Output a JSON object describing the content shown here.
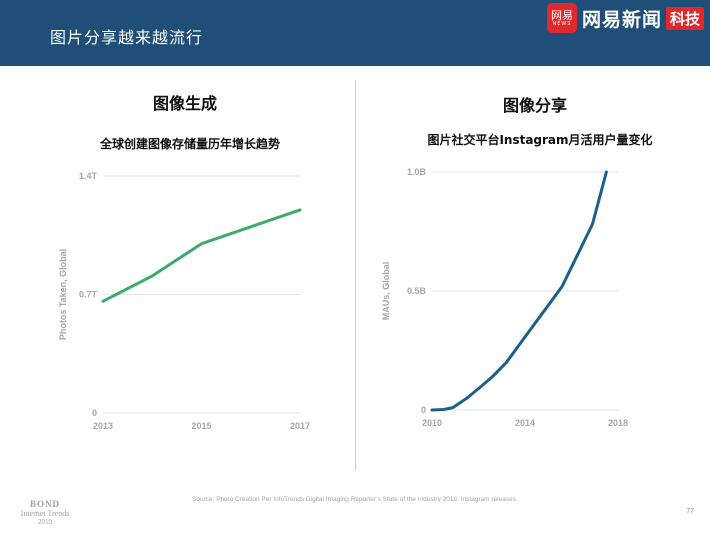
{
  "header": {
    "title": "图片分享越来越流行",
    "logo_badge": "网易",
    "logo_badge_small": "NEWS",
    "logo_text": "网易新闻",
    "logo_tag": "科技"
  },
  "panels": {
    "left_title": "图像生成",
    "right_title": "图像分享"
  },
  "chart_data": [
    {
      "type": "line",
      "title": "全球创建图像存储量历年增长趋势",
      "ylabel": "Photos Taken, Global",
      "x": [
        2013,
        2014,
        2015,
        2016,
        2017
      ],
      "series": [
        {
          "values": [
            0.66,
            0.81,
            1.0,
            1.1,
            1.2
          ],
          "color": "#3daa6a"
        }
      ],
      "xticks": [
        "2013",
        "2015",
        "2017"
      ],
      "yticks": [
        "0",
        "0.7T",
        "1.4T"
      ],
      "xlim": [
        2013,
        2017
      ],
      "ylim": [
        0,
        1.4
      ],
      "grid": true
    },
    {
      "type": "line",
      "title": "图片社交平台Instagram月活用户量变化",
      "ylabel": "MAUs, Global",
      "x": [
        2010.0,
        2010.5,
        2010.9,
        2011.5,
        2012.0,
        2012.6,
        2013.2,
        2013.8,
        2014.4,
        2015.0,
        2015.6,
        2016.0,
        2016.5,
        2016.9,
        2017.5
      ],
      "series": [
        {
          "values": [
            0.0,
            0.002,
            0.01,
            0.05,
            0.09,
            0.14,
            0.2,
            0.28,
            0.36,
            0.44,
            0.52,
            0.6,
            0.7,
            0.78,
            1.0
          ],
          "color": "#1b5f8c"
        }
      ],
      "xticks": [
        "2010",
        "2014",
        "2018"
      ],
      "yticks": [
        "0",
        "0.5B",
        "1.0B"
      ],
      "xlim": [
        2010,
        2018
      ],
      "ylim": [
        0,
        1.0
      ],
      "grid": true
    }
  ],
  "footer": {
    "source": "Source: Photo Creation Per InfoTrends Digital Imaging Reporter’s State of the Industry 2018. Instagram releases.",
    "page": "77",
    "bond_line1": "BOND",
    "bond_line2": "Internet Trends",
    "bond_line3": "2019"
  }
}
